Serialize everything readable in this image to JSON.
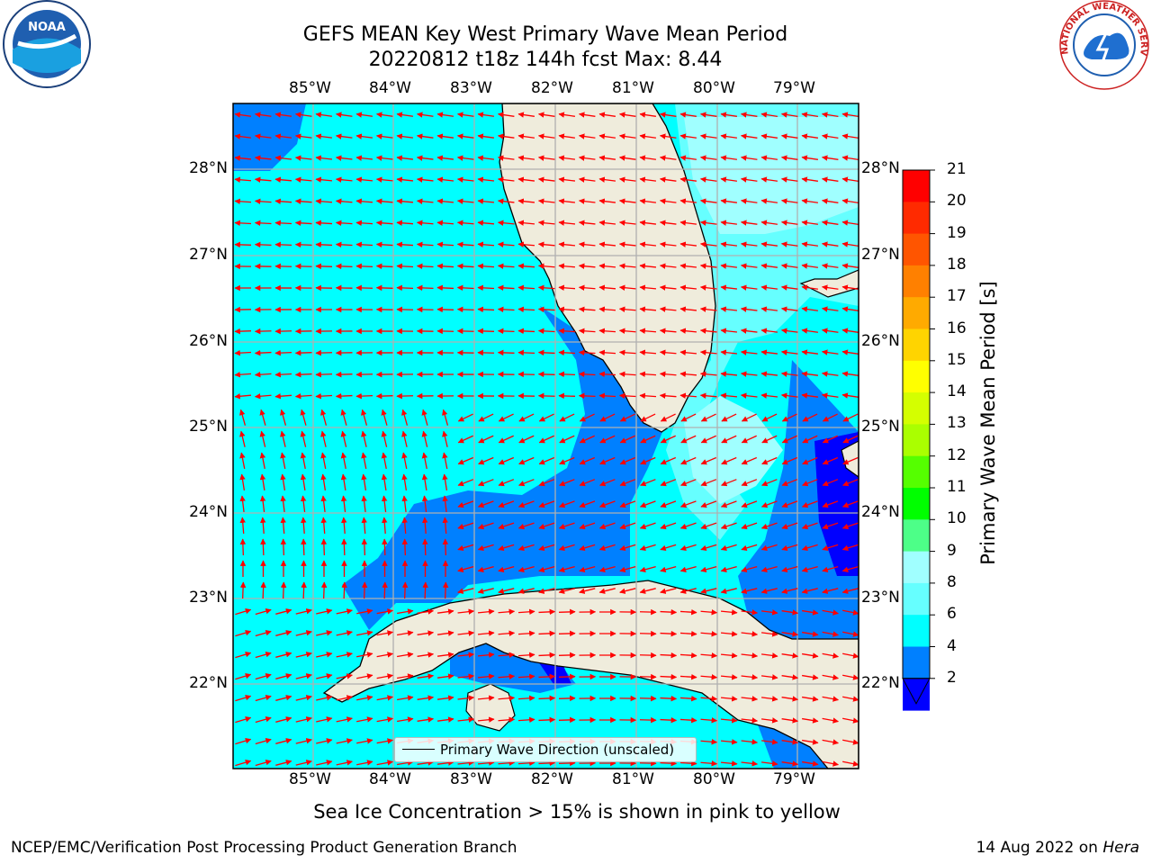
{
  "title_line1": "GEFS MEAN Key West Primary Wave Mean Period",
  "title_line2": "20220812 t18z 144h fcst   Max: 8.44",
  "lon_labels": [
    "85°W",
    "84°W",
    "83°W",
    "82°W",
    "81°W",
    "80°W",
    "79°W"
  ],
  "lat_labels": [
    "28°N",
    "27°N",
    "26°N",
    "25°N",
    "24°N",
    "23°N",
    "22°N"
  ],
  "colorbar": {
    "title": "Primary Wave Mean Period [s]",
    "ticks": [
      "21",
      "20",
      "19",
      "18",
      "17",
      "16",
      "15",
      "14",
      "13",
      "12",
      "11",
      "10",
      "9",
      "8",
      "6",
      "4",
      "2"
    ],
    "colors": [
      "#ff0000",
      "#ff2a00",
      "#ff5500",
      "#ff8000",
      "#ffaa00",
      "#ffd400",
      "#ffff00",
      "#d4ff00",
      "#aaff00",
      "#55ff00",
      "#00ff00",
      "#4dff88",
      "#a0ffff",
      "#66ffff",
      "#00ffff",
      "#0080ff",
      "#0000ff"
    ]
  },
  "legend": {
    "label": "Primary Wave Direction (unscaled)"
  },
  "ice_note": "Sea Ice Concentration > 15% is shown in pink to yellow",
  "footer": {
    "left": "NCEP/EMC/Verification Post Processing Product Generation Branch",
    "date": "14 Aug 2022 on ",
    "machine": "Hera"
  },
  "logos": {
    "left": "NOAA",
    "right": "NATIONAL WEATHER SERVICE"
  },
  "colors": {
    "land": "#efecdc",
    "ocean_mid": "#00ffff",
    "ocean_low": "#0080ff",
    "ocean_min": "#0000ff",
    "ocean_high": "#66ffff",
    "arrow": "#ff0000",
    "grid": "#b0b0b0"
  },
  "map_data": {
    "region": "Florida / Key West / Cuba",
    "lon_range": [
      -86.0,
      -78.3
    ],
    "lat_range": [
      21.0,
      28.8
    ],
    "max_period": 8.44
  }
}
